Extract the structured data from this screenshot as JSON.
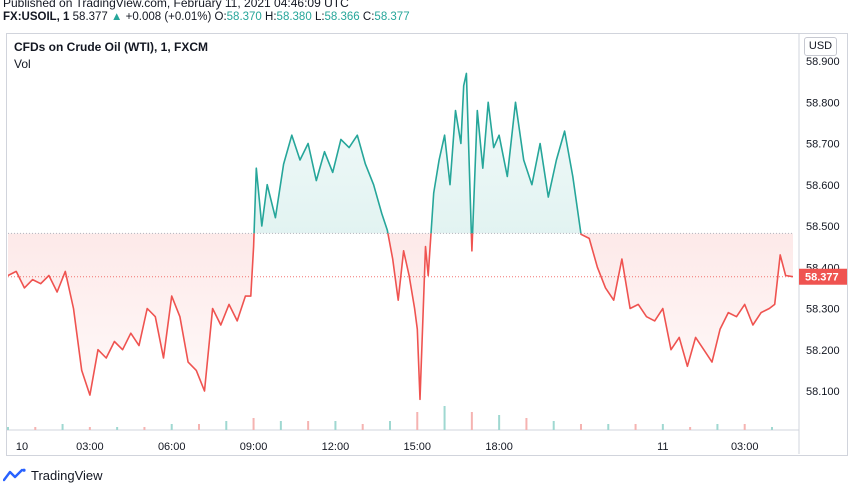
{
  "header": {
    "published": "Published on TradingView.com, February 11, 2021 04:46:09 UTC",
    "symbol": "FX:USOIL, 1",
    "last": "58.377",
    "change_arrow": "▲",
    "change": "+0.008 (+0.01%)",
    "o_label": "O:",
    "o": "58.370",
    "h_label": "H:",
    "h": "58.380",
    "l_label": "L:",
    "l": "58.366",
    "c_label": "C:",
    "c": "58.377"
  },
  "chart_title": "CFDs on Crude Oil (WTI), 1, FXCM",
  "vol_label": "Vol",
  "currency": "USD",
  "footer": {
    "logo_text": "TradingView",
    "logo_icon": "tradingview-logo-icon"
  },
  "colors": {
    "up": "#26a69a",
    "down": "#ef5350",
    "up_fill": "#e0f2ef",
    "down_fill": "#fde3e3",
    "baseline": "#b2b5be"
  },
  "chart_data": {
    "type": "line",
    "style": "baseline",
    "title": "CFDs on Crude Oil (WTI), 1, FXCM",
    "x_unit": "hours from Feb 10 00:00 UTC",
    "ylim": [
      58.0,
      58.95
    ],
    "xlim": [
      0,
      28.77
    ],
    "baseline": 58.482,
    "last_price": 58.377,
    "y_ticks": [
      58.9,
      58.8,
      58.7,
      58.6,
      58.5,
      58.4,
      58.3,
      58.2,
      58.1
    ],
    "y_tick_labels": [
      "58.900",
      "58.800",
      "58.700",
      "58.600",
      "58.500",
      "58.400",
      "58.300",
      "58.200",
      "58.100"
    ],
    "x_ticks": [
      0,
      3,
      6,
      9,
      12,
      15,
      18,
      24,
      27
    ],
    "x_tick_labels": [
      "10",
      "03:00",
      "06:00",
      "09:00",
      "12:00",
      "15:00",
      "18:00",
      "11",
      "03:00"
    ],
    "x": [
      0,
      0.3,
      0.6,
      0.9,
      1.2,
      1.5,
      1.8,
      2.1,
      2.4,
      2.7,
      3.0,
      3.3,
      3.6,
      3.9,
      4.2,
      4.5,
      4.8,
      5.1,
      5.4,
      5.7,
      6.0,
      6.3,
      6.6,
      6.9,
      7.2,
      7.5,
      7.8,
      8.1,
      8.4,
      8.7,
      8.9,
      9.0,
      9.1,
      9.3,
      9.5,
      9.8,
      10.1,
      10.4,
      10.7,
      11.0,
      11.3,
      11.6,
      11.9,
      12.2,
      12.5,
      12.8,
      13.1,
      13.4,
      13.7,
      13.9,
      14.1,
      14.3,
      14.5,
      14.7,
      14.9,
      15.0,
      15.1,
      15.3,
      15.4,
      15.6,
      15.8,
      16.0,
      16.2,
      16.4,
      16.6,
      16.7,
      16.8,
      17.0,
      17.2,
      17.4,
      17.6,
      17.8,
      18.0,
      18.3,
      18.6,
      18.9,
      19.2,
      19.5,
      19.8,
      20.1,
      20.4,
      20.7,
      21.0,
      21.3,
      21.6,
      21.9,
      22.2,
      22.5,
      22.8,
      23.1,
      23.4,
      23.7,
      24.0,
      24.3,
      24.6,
      24.9,
      25.2,
      25.5,
      25.8,
      26.1,
      26.4,
      26.7,
      27.0,
      27.3,
      27.6,
      27.9,
      28.1,
      28.3,
      28.5,
      28.77
    ],
    "y": [
      58.38,
      58.39,
      58.35,
      58.37,
      58.36,
      58.38,
      58.34,
      58.39,
      58.3,
      58.15,
      58.09,
      58.2,
      58.18,
      58.22,
      58.2,
      58.24,
      58.21,
      58.3,
      58.28,
      58.18,
      58.33,
      58.28,
      58.17,
      58.15,
      58.1,
      58.3,
      58.26,
      58.31,
      58.27,
      58.33,
      58.33,
      58.45,
      58.64,
      58.5,
      58.6,
      58.52,
      58.65,
      58.72,
      58.66,
      58.7,
      58.61,
      58.68,
      58.63,
      58.71,
      58.69,
      58.72,
      58.65,
      58.6,
      58.53,
      58.49,
      58.42,
      58.32,
      58.44,
      58.38,
      58.3,
      58.25,
      58.08,
      58.45,
      58.38,
      58.58,
      58.66,
      58.72,
      58.6,
      58.78,
      58.7,
      58.84,
      58.87,
      58.44,
      58.78,
      58.64,
      58.8,
      58.69,
      58.72,
      58.62,
      58.8,
      58.66,
      58.6,
      58.7,
      58.57,
      58.66,
      58.73,
      58.62,
      58.48,
      58.47,
      58.4,
      58.35,
      58.32,
      58.42,
      58.3,
      58.31,
      58.28,
      58.27,
      58.3,
      58.2,
      58.23,
      58.16,
      58.23,
      58.2,
      58.17,
      58.25,
      58.29,
      58.28,
      58.31,
      58.26,
      58.29,
      58.3,
      58.31,
      58.43,
      58.38,
      58.377
    ]
  },
  "volume_data": {
    "x": [
      0,
      1,
      2,
      3,
      4,
      5,
      6,
      7,
      8,
      9,
      10,
      11,
      12,
      13,
      14,
      15,
      16,
      17,
      18,
      19,
      20,
      21,
      22,
      23,
      24,
      25,
      26,
      27,
      28
    ],
    "values": [
      1,
      1,
      2,
      1,
      1,
      1,
      2,
      2,
      3,
      4,
      3,
      3,
      3,
      2,
      3,
      6,
      8,
      6,
      5,
      4,
      3,
      2,
      2,
      2,
      2,
      1,
      2,
      2,
      1
    ]
  }
}
